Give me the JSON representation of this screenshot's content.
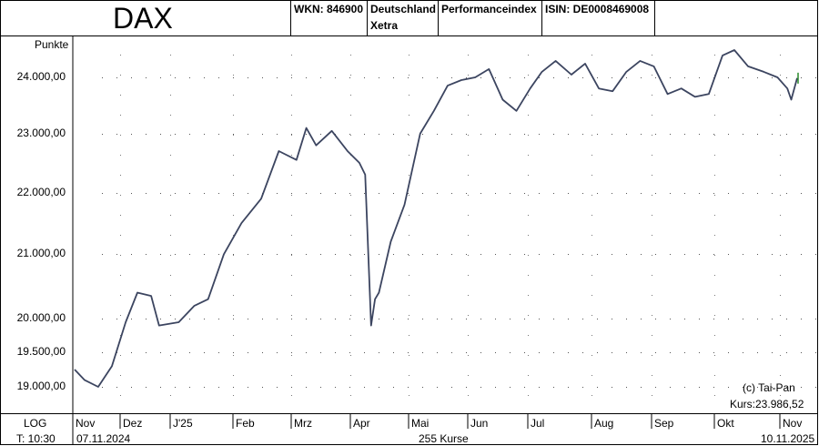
{
  "header": {
    "title": "DAX",
    "wkn": "WKN: 846900",
    "exchange_line1": "Deutschland",
    "exchange_line2": "Xetra",
    "index_type": "Performanceindex",
    "isin": "ISIN: DE0008469008"
  },
  "footer": {
    "scale": "LOG",
    "time": "T: 10:30",
    "start_date": "07.11.2024",
    "count": "255 Kurse",
    "end_date": "10.11.2025",
    "copyright": "(c) Tai-Pan",
    "last_price": "Kurs:23.986,52"
  },
  "chart_data": {
    "type": "line",
    "ylabel": "Punkte",
    "yscale": "log",
    "yticks": [
      19000,
      19500,
      20000,
      21000,
      22000,
      23000,
      24000
    ],
    "ytick_labels": [
      "19.000,00",
      "19.500,00",
      "20.000,00",
      "21.000,00",
      "22.000,00",
      "23.000,00",
      "24.000,00"
    ],
    "x_tick_labels": [
      "Nov",
      "Dez",
      "J'25",
      "Feb",
      "Mrz",
      "Apr",
      "Mai",
      "Jun",
      "Jul",
      "Aug",
      "Sep",
      "Okt",
      "Nov"
    ],
    "grid": "dotted",
    "series": [
      {
        "color": "#3c4560",
        "x": [
          "2024-11-07",
          "2024-11-12",
          "2024-11-19",
          "2024-11-26",
          "2024-12-03",
          "2024-12-09",
          "2024-12-16",
          "2024-12-20",
          "2024-12-30",
          "2025-01-07",
          "2025-01-14",
          "2025-01-22",
          "2025-01-31",
          "2025-02-10",
          "2025-02-19",
          "2025-02-28",
          "2025-03-05",
          "2025-03-10",
          "2025-03-18",
          "2025-03-26",
          "2025-04-01",
          "2025-04-04",
          "2025-04-07",
          "2025-04-09",
          "2025-04-11",
          "2025-04-17",
          "2025-04-24",
          "2025-05-02",
          "2025-05-09",
          "2025-05-16",
          "2025-05-23",
          "2025-05-30",
          "2025-06-06",
          "2025-06-13",
          "2025-06-20",
          "2025-06-27",
          "2025-07-03",
          "2025-07-10",
          "2025-07-18",
          "2025-07-25",
          "2025-08-01",
          "2025-08-08",
          "2025-08-15",
          "2025-08-22",
          "2025-08-29",
          "2025-09-05",
          "2025-09-12",
          "2025-09-19",
          "2025-09-26",
          "2025-10-03",
          "2025-10-09",
          "2025-10-16",
          "2025-10-24",
          "2025-10-31",
          "2025-11-05",
          "2025-11-07",
          "2025-11-10"
        ],
        "y": [
          19250,
          19100,
          19000,
          19300,
          19950,
          20400,
          20350,
          19900,
          19950,
          20200,
          20300,
          21000,
          21500,
          21900,
          22700,
          22550,
          23100,
          22800,
          23050,
          22700,
          22500,
          22300,
          19900,
          20300,
          20400,
          21200,
          21800,
          23000,
          23400,
          23850,
          23950,
          24000,
          24150,
          23600,
          23400,
          23800,
          24100,
          24300,
          24050,
          24250,
          23800,
          23750,
          24100,
          24300,
          24200,
          23700,
          23800,
          23650,
          23700,
          24400,
          24500,
          24200,
          24100,
          24000,
          23800,
          23600,
          23986
        ]
      }
    ]
  }
}
